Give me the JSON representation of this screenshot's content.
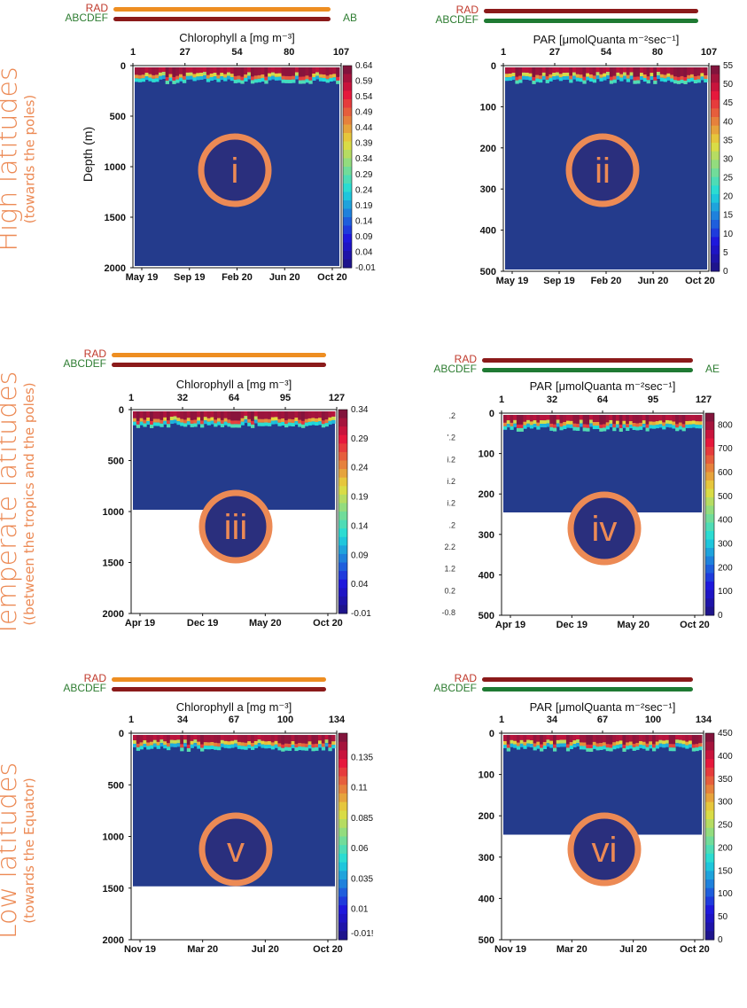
{
  "rows": [
    {
      "label": "High latitudes",
      "sublabel": "(towards the poles)"
    },
    {
      "label": "Temperate latitudes",
      "sublabel": "((between the tropics and the poles)"
    },
    {
      "label": "Low latitudes",
      "sublabel": "(towards the Equator)"
    }
  ],
  "legend": {
    "rad": "RAD",
    "abcdef": "ABCDEF",
    "ab": "AB"
  },
  "chart_data": [
    {
      "type": "heatmap",
      "panel": "i",
      "title": "Chlorophyll a [mg m⁻³]",
      "ylabel": "Depth (m)",
      "top_ticks": [
        "1",
        "27",
        "54",
        "80",
        "107"
      ],
      "x_ticks": [
        "May 19",
        "Sep 19",
        "Feb 20",
        "Jun 20",
        "Oct 20"
      ],
      "y_ticks": [
        "0",
        "500",
        "1000",
        "1500",
        "2000"
      ],
      "ylim": [
        0,
        2000
      ],
      "colorbar_ticks": [
        "0.64",
        "0.59",
        "0.54",
        "0.49",
        "0.44",
        "0.39",
        "0.34",
        "0.29",
        "0.24",
        "0.19",
        "0.14",
        "0.09",
        "0.04",
        "-0.01"
      ],
      "colorbar_range": [
        -0.01,
        0.64
      ],
      "profile_depth_max": 2000,
      "rad_color": "#ee8e21",
      "abcdef_color": "#8b1a1a",
      "right_tag": "AB"
    },
    {
      "type": "heatmap",
      "panel": "ii",
      "title": "PAR [μmolQuanta m⁻²sec⁻¹]",
      "ylabel": "",
      "top_ticks": [
        "1",
        "27",
        "54",
        "80",
        "107"
      ],
      "x_ticks": [
        "May 19",
        "Sep 19",
        "Feb 20",
        "Jun 20",
        "Oct 20"
      ],
      "y_ticks": [
        "0",
        "100",
        "200",
        "300",
        "400",
        "500"
      ],
      "ylim": [
        0,
        500
      ],
      "colorbar_ticks": [
        "55",
        "50",
        "45",
        "40",
        "35",
        "30",
        "25",
        "20",
        "15",
        "10",
        "5",
        "0"
      ],
      "colorbar_range": [
        0,
        55
      ],
      "profile_depth_max": 500,
      "rad_color": "#8b1a1a",
      "abcdef_color": "#1f7a33",
      "right_tag": ""
    },
    {
      "type": "heatmap",
      "panel": "iii",
      "title": "Chlorophyll a [mg m⁻³]",
      "ylabel": "",
      "top_ticks": [
        "1",
        "32",
        "64",
        "95",
        "127"
      ],
      "x_ticks": [
        "Apr 19",
        "Dec 19",
        "May 20",
        "Oct 20"
      ],
      "y_ticks": [
        "0",
        "500",
        "1000",
        "1500",
        "2000"
      ],
      "ylim": [
        0,
        2000
      ],
      "colorbar_ticks": [
        "0.34",
        "0.29",
        "0.24",
        "0.19",
        "0.14",
        "0.09",
        "0.04",
        "-0.01"
      ],
      "colorbar_range": [
        -0.01,
        0.34
      ],
      "profile_depth_max": 1000,
      "rad_color": "#ee8e21",
      "abcdef_color": "#8b1a1a",
      "right_tag": ""
    },
    {
      "type": "heatmap",
      "panel": "iv",
      "title": "PAR [μmolQuanta m⁻²sec⁻¹]",
      "ylabel": "",
      "top_ticks": [
        "1",
        "32",
        "64",
        "95",
        "127"
      ],
      "x_ticks": [
        "Apr 19",
        "Dec 19",
        "May 20",
        "Oct 20"
      ],
      "y_ticks": [
        "0",
        "100",
        "200",
        "300",
        "400",
        "500"
      ],
      "ylim": [
        0,
        500
      ],
      "colorbar_ticks": [
        "800",
        "700",
        "600",
        "500",
        "400",
        "300",
        "200",
        "100",
        "0"
      ],
      "colorbar_range": [
        0,
        850
      ],
      "profile_depth_max": 250,
      "left_ghost_ticks": [
        ".2",
        "'.2",
        "i.2",
        "i.2",
        "i.2",
        ".2",
        "2.2",
        "1.2",
        "0.2",
        "-0.8"
      ],
      "rad_color": "#8b1a1a",
      "abcdef_color": "#1f7a33",
      "right_tag": "AE"
    },
    {
      "type": "heatmap",
      "panel": "v",
      "title": "Chlorophyll a [mg m⁻³]",
      "ylabel": "",
      "top_ticks": [
        "1",
        "34",
        "67",
        "100",
        "134"
      ],
      "x_ticks": [
        "Nov 19",
        "Mar 20",
        "Jul 20",
        "Oct 20"
      ],
      "y_ticks": [
        "0",
        "500",
        "1000",
        "1500",
        "2000"
      ],
      "ylim": [
        0,
        2000
      ],
      "colorbar_ticks": [
        "0.135",
        "0.11",
        "0.085",
        "0.06",
        "0.035",
        "0.01",
        "-0.01!"
      ],
      "colorbar_range": [
        -0.015,
        0.155
      ],
      "profile_depth_max": 1500,
      "rad_color": "#ee8e21",
      "abcdef_color": "#8b1a1a",
      "right_tag": ""
    },
    {
      "type": "heatmap",
      "panel": "vi",
      "title": "PAR [μmolQuanta m⁻²sec⁻¹]",
      "ylabel": "",
      "top_ticks": [
        "1",
        "34",
        "67",
        "100",
        "134"
      ],
      "x_ticks": [
        "Nov 19",
        "Mar 20",
        "Jul 20",
        "Oct 20"
      ],
      "y_ticks": [
        "0",
        "100",
        "200",
        "300",
        "400",
        "500"
      ],
      "ylim": [
        0,
        500
      ],
      "colorbar_ticks": [
        "450",
        "400",
        "350",
        "300",
        "250",
        "200",
        "150",
        "100",
        "50",
        "0"
      ],
      "colorbar_range": [
        0,
        450
      ],
      "profile_depth_max": 250,
      "rad_color": "#8b1a1a",
      "abcdef_color": "#1f7a33",
      "right_tag": ""
    }
  ],
  "colors": {
    "accent": "#ec8a55",
    "badge_ring": "#ec8a55",
    "badge_fill": "#2a2f7d",
    "field": "#243b8c"
  }
}
